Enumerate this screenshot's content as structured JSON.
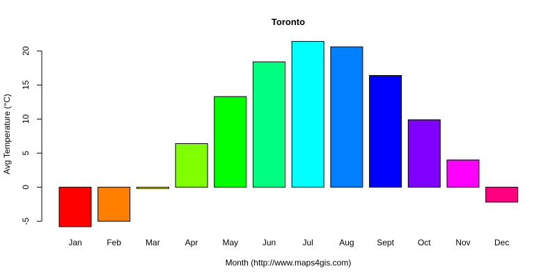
{
  "chart_data": {
    "type": "bar",
    "title": "Toronto",
    "xlabel": "Month (http://www.maps4gis.com)",
    "ylabel": "Avg Temperature (°C)",
    "categories": [
      "Jan",
      "Feb",
      "Mar",
      "Apr",
      "May",
      "Jun",
      "Jul",
      "Aug",
      "Sept",
      "Oct",
      "Nov",
      "Dec"
    ],
    "values": [
      -5.8,
      -5.0,
      -0.2,
      6.4,
      13.3,
      18.4,
      21.4,
      20.6,
      16.4,
      9.9,
      4.0,
      -2.2
    ],
    "colors": [
      "#FF0000",
      "#FF8000",
      "#FFFF00",
      "#80FF00",
      "#00FF00",
      "#00FF80",
      "#00FFFF",
      "#0080FF",
      "#0000FF",
      "#8000FF",
      "#FF00FF",
      "#FF0080"
    ],
    "yticks": [
      -5,
      0,
      5,
      10,
      15,
      20
    ],
    "ylim": [
      -5,
      20
    ],
    "grid": false,
    "legend": "none"
  }
}
